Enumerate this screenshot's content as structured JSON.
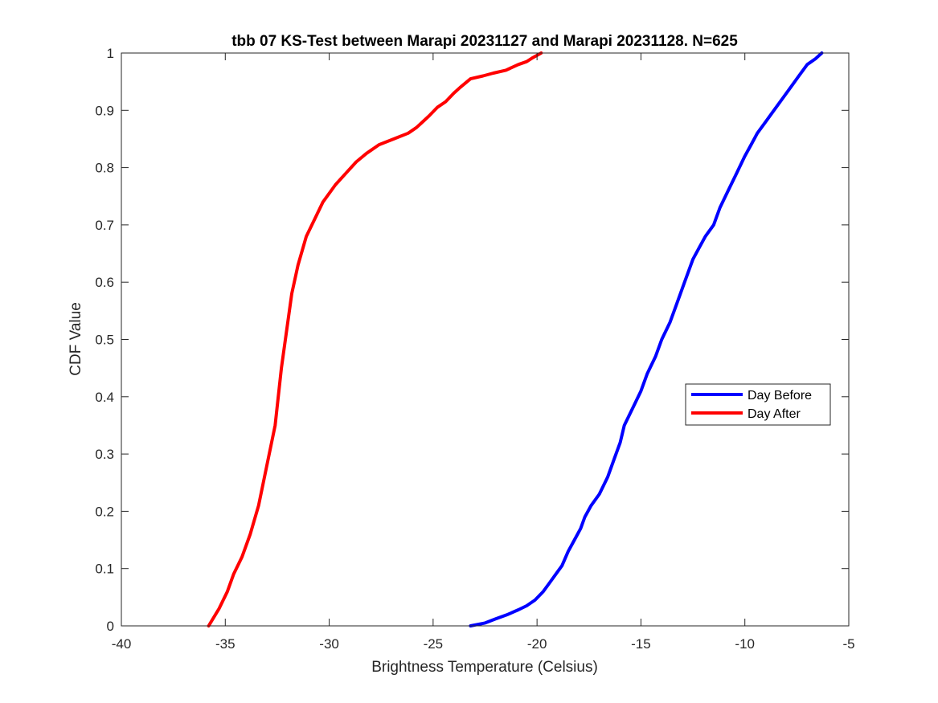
{
  "chart_data": {
    "type": "line",
    "title": "tbb 07 KS-Test between Marapi 20231127 and Marapi 20231128. N=625",
    "xlabel": "Brightness Temperature (Celsius)",
    "ylabel": "CDF Value",
    "xlim": [
      -40,
      -5
    ],
    "ylim": [
      0,
      1
    ],
    "xticks": [
      -40,
      -35,
      -30,
      -25,
      -20,
      -15,
      -10,
      -5
    ],
    "xtick_labels": [
      "-40",
      "-35",
      "-30",
      "-25",
      "-20",
      "-15",
      "-10",
      "-5"
    ],
    "yticks": [
      0,
      0.1,
      0.2,
      0.3,
      0.4,
      0.5,
      0.6,
      0.7,
      0.8,
      0.9,
      1
    ],
    "ytick_labels": [
      "0",
      "0.1",
      "0.2",
      "0.3",
      "0.4",
      "0.5",
      "0.6",
      "0.7",
      "0.8",
      "0.9",
      "1"
    ],
    "grid": false,
    "legend_position": "center-right",
    "series": [
      {
        "name": "Day Before",
        "color": "#0000ff",
        "x": [
          -23.2,
          -22.5,
          -22.0,
          -21.4,
          -20.9,
          -20.5,
          -20.1,
          -19.7,
          -19.4,
          -19.1,
          -18.8,
          -18.5,
          -18.2,
          -17.9,
          -17.7,
          -17.4,
          -17.0,
          -16.6,
          -16.3,
          -16.0,
          -15.8,
          -15.4,
          -15.0,
          -14.7,
          -14.3,
          -14.0,
          -13.6,
          -13.3,
          -12.9,
          -12.5,
          -12.2,
          -11.9,
          -11.5,
          -11.2,
          -10.8,
          -10.4,
          -10.0,
          -9.7,
          -9.4,
          -9.0,
          -8.6,
          -8.2,
          -7.8,
          -7.4,
          -7.0,
          -6.6,
          -6.3
        ],
        "y": [
          0.0,
          0.005,
          0.012,
          0.02,
          0.028,
          0.035,
          0.045,
          0.06,
          0.075,
          0.09,
          0.105,
          0.13,
          0.15,
          0.17,
          0.19,
          0.21,
          0.23,
          0.26,
          0.29,
          0.32,
          0.35,
          0.38,
          0.41,
          0.44,
          0.47,
          0.5,
          0.53,
          0.56,
          0.6,
          0.64,
          0.66,
          0.68,
          0.7,
          0.73,
          0.76,
          0.79,
          0.82,
          0.84,
          0.86,
          0.88,
          0.9,
          0.92,
          0.94,
          0.96,
          0.98,
          0.99,
          1.0
        ]
      },
      {
        "name": "Day After",
        "color": "#ff0000",
        "x": [
          -35.8,
          -35.3,
          -34.9,
          -34.6,
          -34.2,
          -33.8,
          -33.4,
          -33.0,
          -32.6,
          -32.3,
          -31.8,
          -31.5,
          -31.1,
          -30.7,
          -30.3,
          -29.7,
          -29.2,
          -28.7,
          -28.2,
          -27.6,
          -26.9,
          -26.2,
          -25.8,
          -25.5,
          -25.2,
          -24.8,
          -24.4,
          -24.0,
          -23.7,
          -23.2,
          -22.6,
          -22.1,
          -21.5,
          -20.9,
          -20.5,
          -20.2,
          -19.8
        ],
        "y": [
          0.0,
          0.03,
          0.06,
          0.09,
          0.12,
          0.16,
          0.21,
          0.28,
          0.35,
          0.45,
          0.58,
          0.63,
          0.68,
          0.71,
          0.74,
          0.77,
          0.79,
          0.81,
          0.825,
          0.84,
          0.85,
          0.86,
          0.87,
          0.88,
          0.89,
          0.905,
          0.915,
          0.93,
          0.94,
          0.955,
          0.96,
          0.965,
          0.97,
          0.98,
          0.985,
          0.992,
          1.0
        ]
      }
    ]
  }
}
